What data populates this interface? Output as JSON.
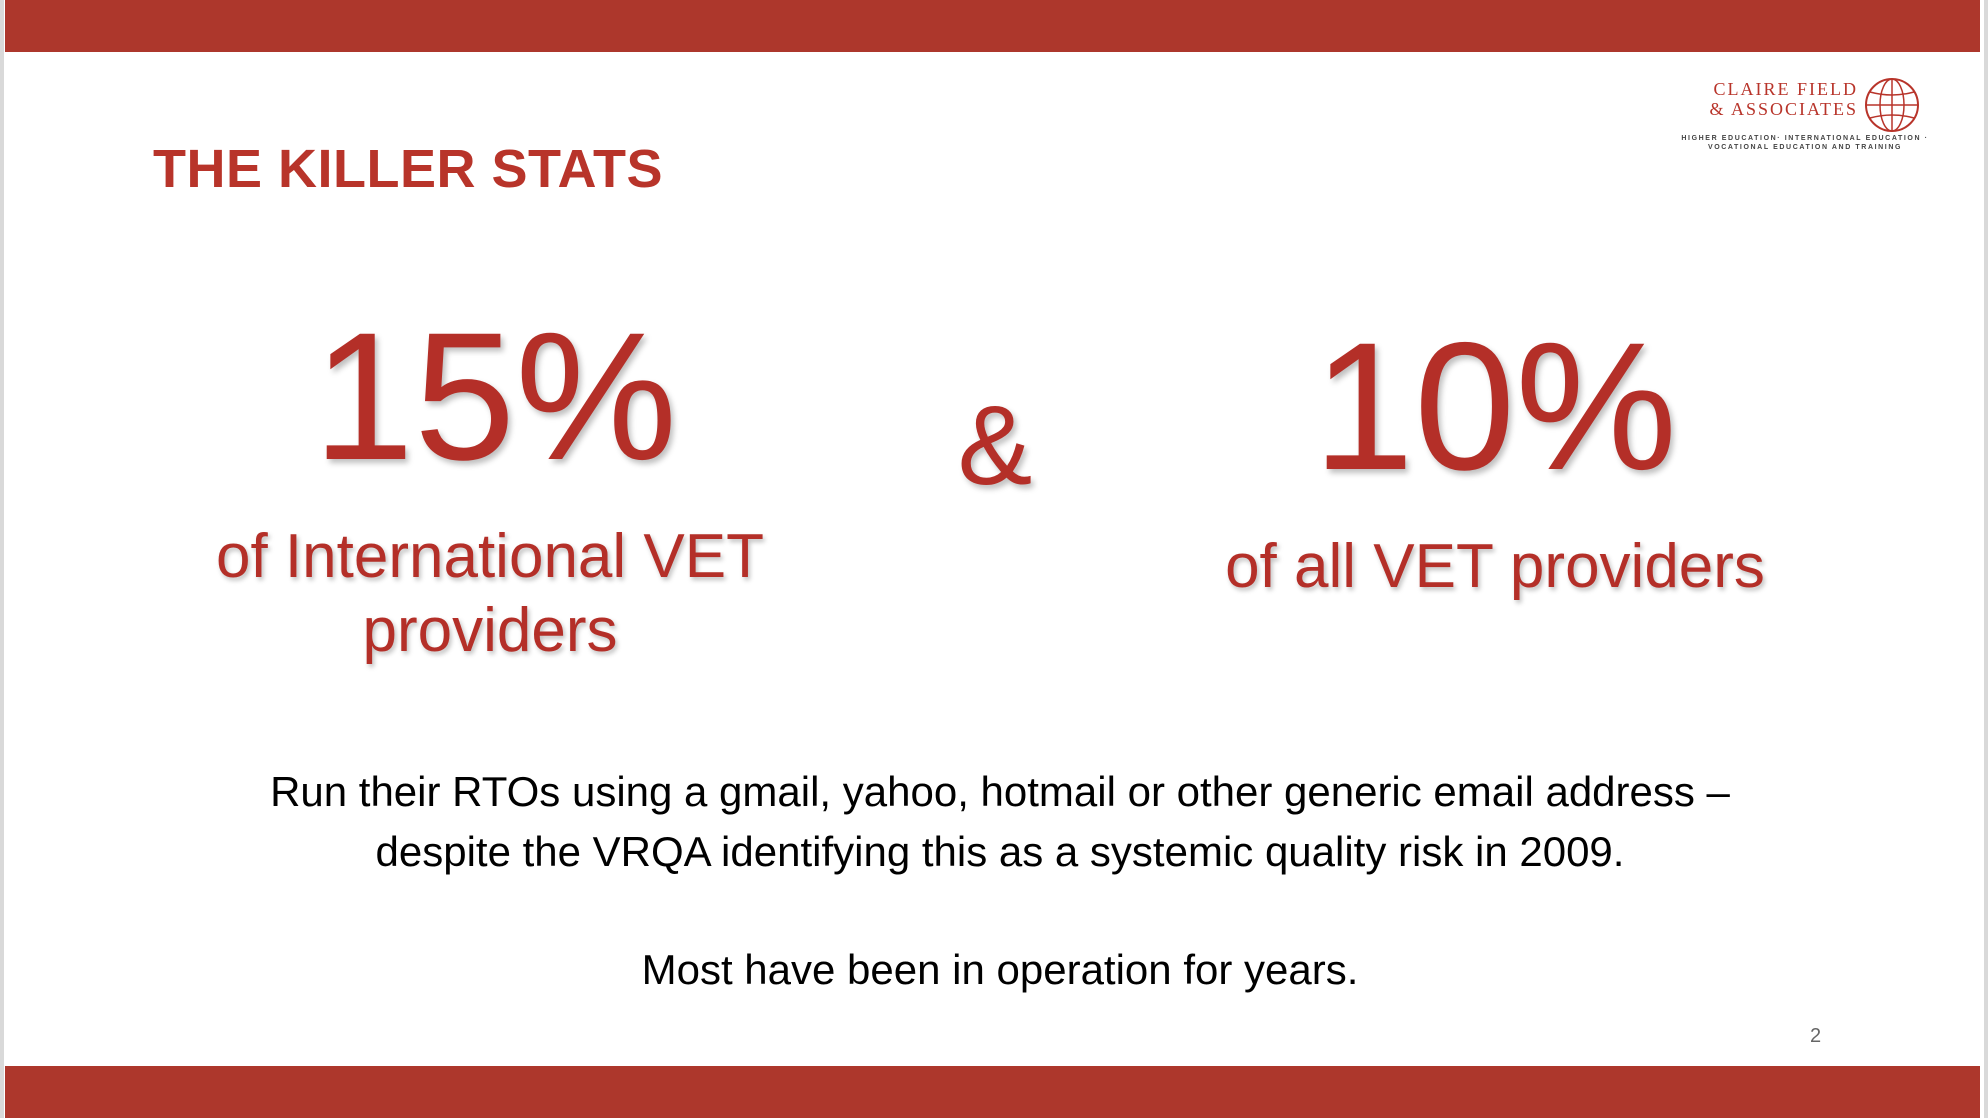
{
  "slide": {
    "title": "THE KILLER STATS",
    "logo": {
      "name_line1": "CLAIRE FIELD",
      "name_line2": "& ASSOCIATES",
      "tagline_line1": "HIGHER EDUCATION· INTERNATIONAL EDUCATION ·",
      "tagline_line2": "VOCATIONAL EDUCATION AND TRAINING",
      "icon": "globe-icon"
    },
    "stat_left": {
      "value": "15%",
      "desc_line1": "of International VET",
      "desc_line2": "providers"
    },
    "connector": "&",
    "stat_right": {
      "value": "10%",
      "desc_line1": "of all VET providers"
    },
    "body_line1": "Run their RTOs using a gmail, yahoo, hotmail or other generic email address –",
    "body_line2": "despite the VRQA identifying this as a systemic quality risk in 2009.",
    "body_line3": "Most have been in operation for years.",
    "page_number": "2"
  },
  "colors": {
    "accent": "#ad372c",
    "stat_text": "#b42f28",
    "body_text": "#000000"
  }
}
